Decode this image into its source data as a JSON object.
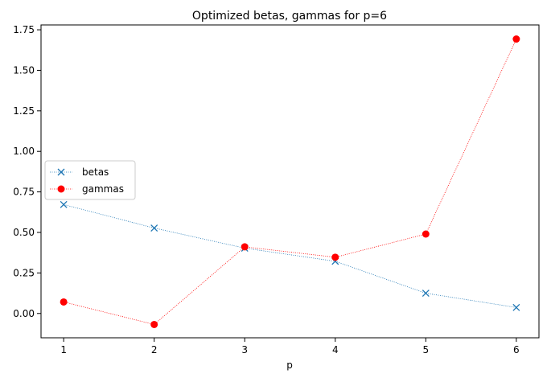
{
  "chart_data": {
    "type": "line",
    "title": "Optimized betas, gammas for p=6",
    "xlabel": "p",
    "ylabel": "",
    "x": [
      1,
      2,
      3,
      4,
      5,
      6
    ],
    "xlim": [
      0.75,
      6.25
    ],
    "ylim": [
      -0.15,
      1.78
    ],
    "x_ticks": [
      "1",
      "2",
      "3",
      "4",
      "5",
      "6"
    ],
    "y_ticks": [
      "0.00",
      "0.25",
      "0.50",
      "0.75",
      "1.00",
      "1.25",
      "1.50",
      "1.75"
    ],
    "series": [
      {
        "name": "betas",
        "values": [
          0.672,
          0.527,
          0.403,
          0.322,
          0.125,
          0.037
        ],
        "color": "#1f77b4",
        "marker": "x",
        "linestyle": "dotted"
      },
      {
        "name": "gammas",
        "values": [
          0.071,
          -0.068,
          0.411,
          0.347,
          0.49,
          1.693
        ],
        "color": "#ff0000",
        "marker": "o",
        "linestyle": "dotted"
      }
    ],
    "legend_position": "center-left",
    "grid": false
  }
}
